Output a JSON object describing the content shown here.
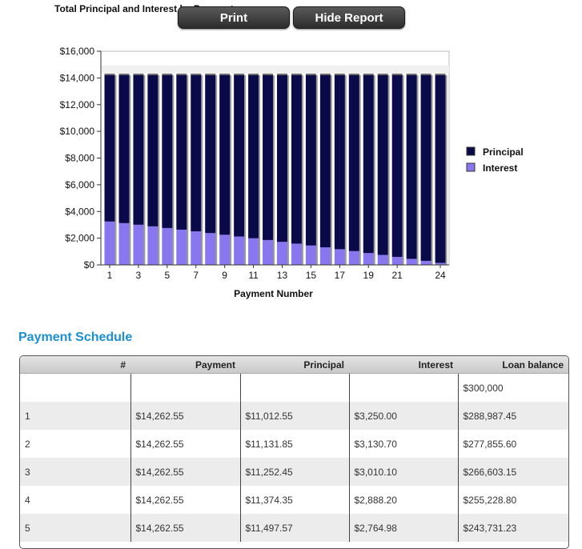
{
  "chart": {
    "title": "Total Principal and Interest by Payment"
  },
  "buttons": {
    "print": "Print",
    "hide_report": "Hide Report"
  },
  "chart_data": {
    "type": "bar",
    "stacked": true,
    "xlabel": "Payment Number",
    "ylabel": "",
    "ylim": [
      0,
      16000
    ],
    "yticks": [
      "$0",
      "$2,000",
      "$4,000",
      "$6,000",
      "$8,000",
      "$10,000",
      "$12,000",
      "$14,000",
      "$16,000"
    ],
    "xtick_labels": [
      "1",
      "3",
      "5",
      "7",
      "9",
      "11",
      "13",
      "15",
      "17",
      "19",
      "21",
      "24"
    ],
    "categories": [
      1,
      2,
      3,
      4,
      5,
      6,
      7,
      8,
      9,
      10,
      11,
      12,
      13,
      14,
      15,
      16,
      17,
      18,
      19,
      20,
      21,
      22,
      23,
      24
    ],
    "legend_position": "right",
    "series": [
      {
        "name": "Principal",
        "color": "#0a0a4a",
        "values": [
          11012.55,
          11131.85,
          11252.45,
          11374.35,
          11497.57,
          11622.13,
          11748.04,
          11875.31,
          12003.96,
          12134.0,
          12265.45,
          12398.32,
          12532.64,
          12668.41,
          12805.65,
          12944.38,
          13084.61,
          13226.36,
          13369.64,
          13514.48,
          13660.89,
          13808.88,
          13958.48,
          14109.7
        ]
      },
      {
        "name": "Interest",
        "color": "#8877ee",
        "values": [
          3250.0,
          3130.7,
          3010.1,
          2888.2,
          2764.98,
          2640.42,
          2514.51,
          2387.24,
          2258.59,
          2128.55,
          1997.1,
          1864.23,
          1729.91,
          1594.14,
          1456.9,
          1318.17,
          1177.94,
          1036.19,
          892.91,
          748.07,
          601.66,
          453.67,
          304.07,
          152.85
        ]
      }
    ]
  },
  "schedule": {
    "heading": "Payment Schedule",
    "columns": [
      "#",
      "Payment",
      "Principal",
      "Interest",
      "Loan balance"
    ],
    "rows": [
      [
        "",
        "",
        "",
        "",
        "$300,000"
      ],
      [
        "1",
        "$14,262.55",
        "$11,012.55",
        "$3,250.00",
        "$288,987.45"
      ],
      [
        "2",
        "$14,262.55",
        "$11,131.85",
        "$3,130.70",
        "$277,855.60"
      ],
      [
        "3",
        "$14,262.55",
        "$11,252.45",
        "$3,010.10",
        "$266,603.15"
      ],
      [
        "4",
        "$14,262.55",
        "$11,374.35",
        "$2,888.20",
        "$255,228.80"
      ],
      [
        "5",
        "$14,262.55",
        "$11,497.57",
        "$2,764.98",
        "$243,731.23"
      ]
    ]
  }
}
